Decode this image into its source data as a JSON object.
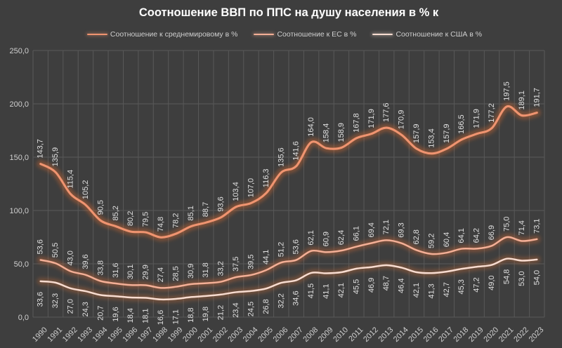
{
  "chart_data": {
    "type": "line",
    "title": "Соотношение ВВП по ППС на душу населения в % к",
    "categories": [
      "1990",
      "1991",
      "1992",
      "1993",
      "1994",
      "1995",
      "1996",
      "1997",
      "1998",
      "1999",
      "2000",
      "2001",
      "2002",
      "2003",
      "2004",
      "2005",
      "2006",
      "2007",
      "2008",
      "2009",
      "2010",
      "2011",
      "2012",
      "2013",
      "2014",
      "2015",
      "2016",
      "2017",
      "2018",
      "2019",
      "2020",
      "2021",
      "2022",
      "2023"
    ],
    "series": [
      {
        "name": "Соотношение к среднемировому в %",
        "color": "#ef9470",
        "glow_color": "#d6682e",
        "line_width": 3.1,
        "label_side": "above",
        "values": [
          143.7,
          135.9,
          115.4,
          105.2,
          90.5,
          85.2,
          80.2,
          79.5,
          74.8,
          78.2,
          85.1,
          88.7,
          93.6,
          103.4,
          107.0,
          116.3,
          135.6,
          141.6,
          164.0,
          158.4,
          158.9,
          167.8,
          171.9,
          177.6,
          170.9,
          157.9,
          153.4,
          157.9,
          166.5,
          171.9,
          177.2,
          197.5,
          189.1,
          191.7
        ]
      },
      {
        "name": "Соотношение к ЕС в %",
        "color": "#f3af96",
        "glow_color": "#c4663a",
        "line_width": 2.5,
        "label_side": "above",
        "values": [
          53.6,
          50.5,
          43.0,
          39.6,
          33.8,
          31.6,
          30.1,
          29.9,
          27.4,
          28.5,
          30.9,
          31.8,
          33.2,
          37.5,
          39.5,
          44.1,
          51.2,
          53.6,
          62.1,
          60.9,
          62.4,
          66.1,
          69.4,
          72.1,
          69.3,
          62.8,
          59.2,
          60.4,
          64.1,
          64.2,
          66.9,
          75.0,
          71.4,
          73.1
        ]
      },
      {
        "name": "Соотношение к США в %",
        "color": "#f7dcd0",
        "glow_color": "#b6663a",
        "line_width": 2.5,
        "label_side": "below",
        "values": [
          33.6,
          32.3,
          27.0,
          24.3,
          20.7,
          19.6,
          18.4,
          18.1,
          16.6,
          17.1,
          18.8,
          19.8,
          21.2,
          23.4,
          24.5,
          26.8,
          32.2,
          34.6,
          41.5,
          41.1,
          42.1,
          45.5,
          46.9,
          48.7,
          46.4,
          42.1,
          41.3,
          42.7,
          45.3,
          47.2,
          49.0,
          54.8,
          53.0,
          54.0
        ]
      }
    ],
    "ylim": [
      0,
      250
    ],
    "ytick_step": 50,
    "ytick_labels": [
      "0,0",
      "50,0",
      "100,0",
      "150,0",
      "200,0",
      "250,0"
    ],
    "grid": true,
    "legend_position": "top",
    "colors": {
      "background": "#3e3e3e",
      "gridline": "#595959",
      "title_text": "#ffffff",
      "axis_text": "#cfcfcf",
      "data_label_text": "#e0e0e0"
    }
  }
}
